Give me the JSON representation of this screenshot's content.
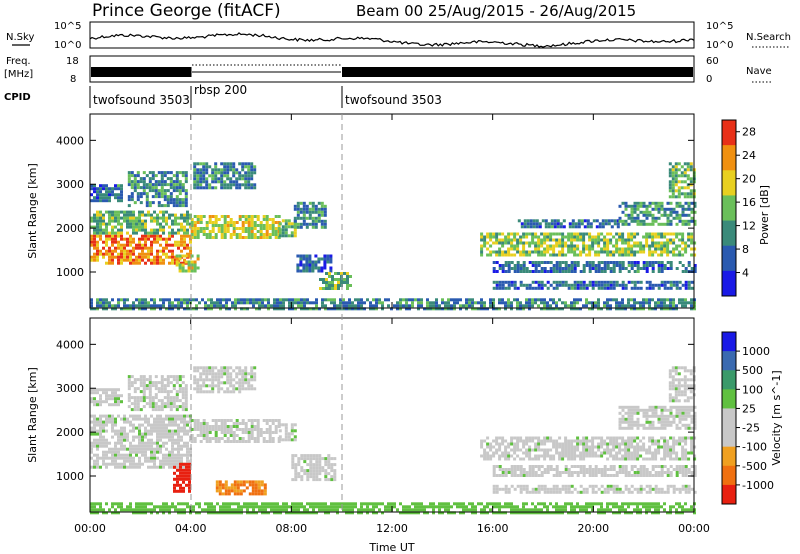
{
  "header": {
    "title": "Prince George (fitACF)",
    "beam_info": "Beam 00 25/Aug/2015 - 26/Aug/2015"
  },
  "strips": {
    "nsky_label": "N.Sky",
    "nsky_ticks": [
      "10^5",
      "10^0"
    ],
    "nsearch_label": "N.Search",
    "nsearch_ticks": [
      "10^5",
      "10^0"
    ],
    "freq_label": "Freq.",
    "freq_unit": "[MHz]",
    "freq_ticks": [
      "18",
      "8"
    ],
    "nave_label": "Nave",
    "nave_ticks": [
      "60",
      "0"
    ],
    "cpid_label": "CPID",
    "cpid_segments": [
      {
        "label": "twofsound 3503",
        "start": 0.0,
        "end": 4.0
      },
      {
        "label": "rbsp 200",
        "start": 4.0,
        "end": 10.0
      },
      {
        "label": "twofsound 3503",
        "start": 10.0,
        "end": 24.0
      }
    ]
  },
  "chart_data": [
    {
      "type": "heatmap",
      "name": "power-panel",
      "xlabel": "",
      "ylabel": "Slant Range [km]",
      "yticks": [
        "1000",
        "2000",
        "3000",
        "4000"
      ],
      "x_range_hours": [
        0,
        24
      ],
      "y_range_km": [
        180,
        4600
      ],
      "colorbar": {
        "label": "Power [dB]",
        "ticks": [
          "4",
          "8",
          "12",
          "16",
          "20",
          "24",
          "28"
        ],
        "range": [
          0,
          30
        ],
        "colors": [
          "#1a1ae6",
          "#2a5ab0",
          "#3a8a7a",
          "#6abf5a",
          "#e8d020",
          "#f09010",
          "#e83018"
        ]
      },
      "regions": [
        {
          "t0": 0.0,
          "t1": 4.0,
          "r0": 1200,
          "r1": 1850,
          "value": 24
        },
        {
          "t0": 0.0,
          "t1": 4.0,
          "r0": 1900,
          "r1": 2400,
          "value": 14
        },
        {
          "t0": 0.0,
          "t1": 1.3,
          "r0": 2600,
          "r1": 3000,
          "value": 8
        },
        {
          "t0": 1.5,
          "t1": 3.8,
          "r0": 2500,
          "r1": 3300,
          "value": 10
        },
        {
          "t0": 3.4,
          "t1": 4.3,
          "r0": 1000,
          "r1": 1400,
          "value": 18
        },
        {
          "t0": 4.0,
          "t1": 7.5,
          "r0": 1800,
          "r1": 2300,
          "value": 18
        },
        {
          "t0": 7.5,
          "t1": 8.2,
          "r0": 1800,
          "r1": 2200,
          "value": 14
        },
        {
          "t0": 8.1,
          "t1": 9.4,
          "r0": 2000,
          "r1": 2600,
          "value": 10
        },
        {
          "t0": 4.1,
          "t1": 6.6,
          "r0": 2900,
          "r1": 3500,
          "value": 10
        },
        {
          "t0": 8.2,
          "t1": 9.6,
          "r0": 1000,
          "r1": 1400,
          "value": 8
        },
        {
          "t0": 9.1,
          "t1": 10.3,
          "r0": 600,
          "r1": 1000,
          "value": 14
        },
        {
          "t0": 0.0,
          "t1": 24.0,
          "r0": 180,
          "r1": 400,
          "value": 10
        },
        {
          "t0": 15.5,
          "t1": 24.0,
          "r0": 1400,
          "r1": 1900,
          "value": 16
        },
        {
          "t0": 16.0,
          "t1": 24.0,
          "r0": 1000,
          "r1": 1250,
          "value": 8
        },
        {
          "t0": 16.0,
          "t1": 24.0,
          "r0": 600,
          "r1": 800,
          "value": 8
        },
        {
          "t0": 17.0,
          "t1": 21.0,
          "r0": 2000,
          "r1": 2200,
          "value": 8
        },
        {
          "t0": 21.0,
          "t1": 24.0,
          "r0": 2100,
          "r1": 2600,
          "value": 12
        },
        {
          "t0": 23.0,
          "t1": 24.0,
          "r0": 2700,
          "r1": 3500,
          "value": 14
        }
      ]
    },
    {
      "type": "heatmap",
      "name": "velocity-panel",
      "xlabel": "Time UT",
      "ylabel": "Slant Range [km]",
      "xticks": [
        "00:00",
        "04:00",
        "08:00",
        "12:00",
        "16:00",
        "20:00",
        "00:00"
      ],
      "yticks": [
        "1000",
        "2000",
        "3000",
        "4000"
      ],
      "x_range_hours": [
        0,
        24
      ],
      "y_range_km": [
        180,
        4600
      ],
      "colorbar": {
        "label": "Velocity [m s^-1]",
        "ticks": [
          "1000",
          "500",
          "100",
          "25",
          "-25",
          "-100",
          "-500",
          "-1000"
        ],
        "range": [
          -1000,
          1000
        ],
        "colors": [
          "#1a1ae6",
          "#3a6ab0",
          "#3a9a6a",
          "#60c040",
          "#c8c8c8",
          "#c8c8c8",
          "#f0a020",
          "#f07010",
          "#e82010"
        ]
      },
      "regions": [
        {
          "t0": 0.0,
          "t1": 4.0,
          "r0": 1200,
          "r1": 1850,
          "value": 0
        },
        {
          "t0": 0.0,
          "t1": 4.0,
          "r0": 1900,
          "r1": 2400,
          "value": 0
        },
        {
          "t0": 0.0,
          "t1": 1.3,
          "r0": 2600,
          "r1": 3000,
          "value": 0
        },
        {
          "t0": 1.5,
          "t1": 3.8,
          "r0": 2500,
          "r1": 3300,
          "value": 0
        },
        {
          "t0": 3.3,
          "t1": 3.9,
          "r0": 650,
          "r1": 1300,
          "value": -900
        },
        {
          "t0": 4.0,
          "t1": 7.5,
          "r0": 1800,
          "r1": 2300,
          "value": 0
        },
        {
          "t0": 7.5,
          "t1": 8.2,
          "r0": 1800,
          "r1": 2200,
          "value": 0
        },
        {
          "t0": 4.1,
          "t1": 6.6,
          "r0": 2900,
          "r1": 3500,
          "value": 0
        },
        {
          "t0": 8.0,
          "t1": 9.7,
          "r0": 900,
          "r1": 1500,
          "value": 0
        },
        {
          "t0": 5.0,
          "t1": 7.0,
          "r0": 600,
          "r1": 900,
          "value": -300
        },
        {
          "t0": 0.0,
          "t1": 24.0,
          "r0": 180,
          "r1": 400,
          "value": 60
        },
        {
          "t0": 15.5,
          "t1": 24.0,
          "r0": 1400,
          "r1": 1900,
          "value": 0
        },
        {
          "t0": 16.0,
          "t1": 24.0,
          "r0": 1000,
          "r1": 1250,
          "value": 0
        },
        {
          "t0": 16.0,
          "t1": 24.0,
          "r0": 600,
          "r1": 800,
          "value": 0
        },
        {
          "t0": 21.0,
          "t1": 24.0,
          "r0": 2100,
          "r1": 2600,
          "value": 0
        },
        {
          "t0": 23.0,
          "t1": 24.0,
          "r0": 2700,
          "r1": 3500,
          "value": 0
        }
      ]
    }
  ]
}
